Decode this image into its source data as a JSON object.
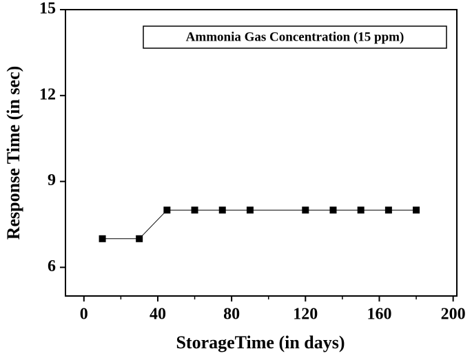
{
  "chart_data": {
    "type": "line",
    "annotation": "Ammonia Gas Concentration (15 ppm)",
    "xlabel": "StorageTime (in days)",
    "ylabel": "Response Time (in sec)",
    "x": [
      10,
      30,
      45,
      60,
      75,
      90,
      120,
      135,
      150,
      165,
      180
    ],
    "series": [
      {
        "color": "#000000",
        "values": [
          7,
          7,
          8,
          8,
          8,
          8,
          8,
          8,
          8,
          8,
          8
        ]
      }
    ],
    "xlim": [
      -10,
      202
    ],
    "xticks": [
      0,
      40,
      80,
      120,
      160,
      200
    ],
    "xminorticks": [
      20,
      60,
      100,
      140,
      180
    ],
    "ylim": [
      5,
      15
    ],
    "yticks": [
      6,
      9,
      12,
      15
    ],
    "grid": false
  }
}
